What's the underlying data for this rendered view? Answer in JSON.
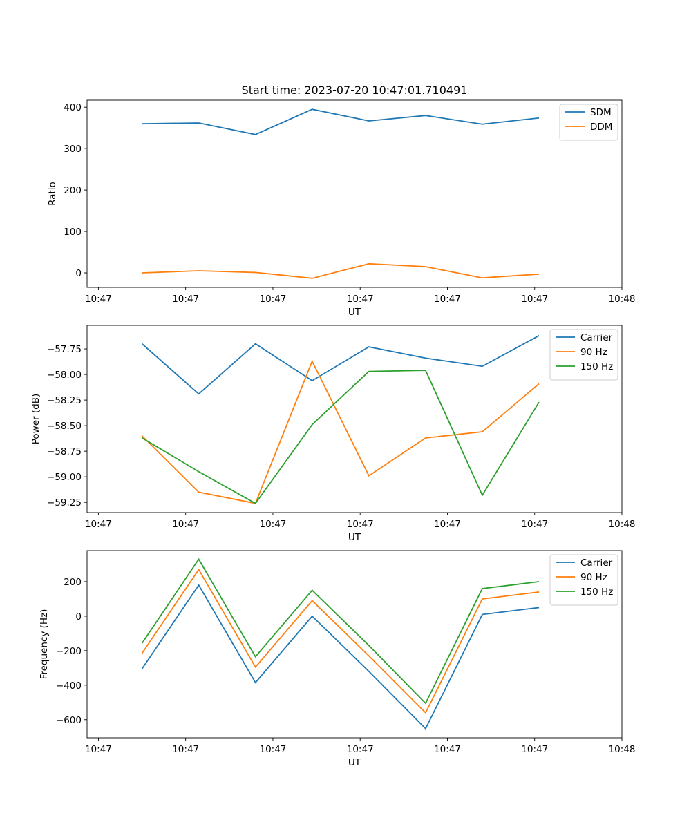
{
  "figure_title": "Start time: 2023-07-20 10:47:01.710491",
  "chart_data": [
    {
      "type": "line",
      "title": "Start time: 2023-07-20 10:47:01.710491",
      "xlabel": "UT",
      "ylabel": "Ratio",
      "x_ticks": [
        "10:47",
        "10:47",
        "10:47",
        "10:47",
        "10:47",
        "10:47",
        "10:47"
      ],
      "x_tick_last": "10:48",
      "x": [
        0.5,
        1.15,
        1.8,
        2.45,
        3.1,
        3.75,
        4.4,
        5.05
      ],
      "xlim": [
        -0.13,
        6.0
      ],
      "ylim": [
        -35,
        417
      ],
      "y_ticks": [
        0,
        100,
        200,
        300,
        400
      ],
      "legend_position": "top-right",
      "series": [
        {
          "name": "SDM",
          "color": "#1f77b4",
          "values": [
            360,
            362,
            334,
            395,
            367,
            380,
            359,
            374
          ]
        },
        {
          "name": "DDM",
          "color": "#ff7f0e",
          "values": [
            0,
            5,
            1,
            -13,
            22,
            15,
            -12,
            -3
          ]
        }
      ]
    },
    {
      "type": "line",
      "title": "",
      "xlabel": "UT",
      "ylabel": "Power (dB)",
      "x_ticks": [
        "10:47",
        "10:47",
        "10:47",
        "10:47",
        "10:47",
        "10:47",
        "10:47"
      ],
      "x_tick_last": "10:48",
      "x": [
        0.5,
        1.15,
        1.8,
        2.45,
        3.1,
        3.75,
        4.4,
        5.05
      ],
      "xlim": [
        -0.13,
        6.0
      ],
      "ylim": [
        -59.35,
        -57.52
      ],
      "y_ticks": [
        -57.75,
        -58.0,
        -58.25,
        -58.5,
        -58.75,
        -59.0,
        -59.25
      ],
      "y_tick_labels": [
        "−57.75",
        "−58.00",
        "−58.25",
        "−58.50",
        "−58.75",
        "−59.00",
        "−59.25"
      ],
      "legend_position": "top-right",
      "series": [
        {
          "name": "Carrier",
          "color": "#1f77b4",
          "values": [
            -57.7,
            -58.19,
            -57.7,
            -58.06,
            -57.73,
            -57.84,
            -57.92,
            -57.62
          ]
        },
        {
          "name": "90 Hz",
          "color": "#ff7f0e",
          "values": [
            -58.6,
            -59.15,
            -59.26,
            -57.87,
            -58.99,
            -58.62,
            -58.56,
            -58.09
          ]
        },
        {
          "name": "150 Hz",
          "color": "#2ca02c",
          "values": [
            -58.62,
            -58.95,
            -59.26,
            -58.49,
            -57.97,
            -57.96,
            -59.18,
            -58.27
          ]
        }
      ]
    },
    {
      "type": "line",
      "title": "",
      "xlabel": "UT",
      "ylabel": "Frequency (Hz)",
      "x_ticks": [
        "10:47",
        "10:47",
        "10:47",
        "10:47",
        "10:47",
        "10:47",
        "10:47"
      ],
      "x_tick_last": "10:48",
      "x": [
        0.5,
        1.15,
        1.8,
        2.45,
        3.1,
        3.75,
        4.4,
        5.05
      ],
      "xlim": [
        -0.13,
        6.0
      ],
      "ylim": [
        -705,
        380
      ],
      "y_ticks": [
        200,
        0,
        -200,
        -400,
        -600
      ],
      "y_tick_labels": [
        "200",
        "0",
        "−200",
        "−400",
        "−600"
      ],
      "legend_position": "top-right",
      "series": [
        {
          "name": "Carrier",
          "color": "#1f77b4",
          "values": [
            -305,
            180,
            -385,
            0,
            -320,
            -652,
            10,
            50
          ]
        },
        {
          "name": "90 Hz",
          "color": "#ff7f0e",
          "values": [
            -215,
            270,
            -295,
            90,
            -230,
            -560,
            100,
            140
          ]
        },
        {
          "name": "150 Hz",
          "color": "#2ca02c",
          "values": [
            -157,
            330,
            -235,
            150,
            -170,
            -505,
            160,
            200
          ]
        }
      ]
    }
  ]
}
